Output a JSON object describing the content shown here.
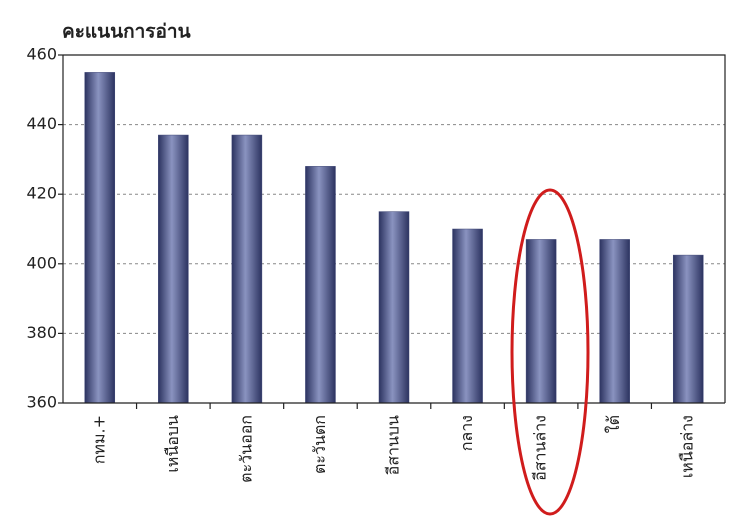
{
  "chart_data": {
    "type": "bar",
    "title": "คะแนนการอ่าน",
    "categories": [
      "กทม.+",
      "เหนือบน",
      "ตะวันออก",
      "ตะวันตก",
      "อีสานบน",
      "กลาง",
      "อีสานล่าง",
      "ใต้",
      "เหนือล่าง"
    ],
    "values": [
      455,
      437,
      437,
      428,
      415,
      410,
      407,
      407,
      402.5
    ],
    "color": "#3d4575",
    "ylim": [
      360,
      460
    ],
    "yticks": [
      360,
      380,
      400,
      420,
      440,
      460
    ],
    "grid": true
  }
}
